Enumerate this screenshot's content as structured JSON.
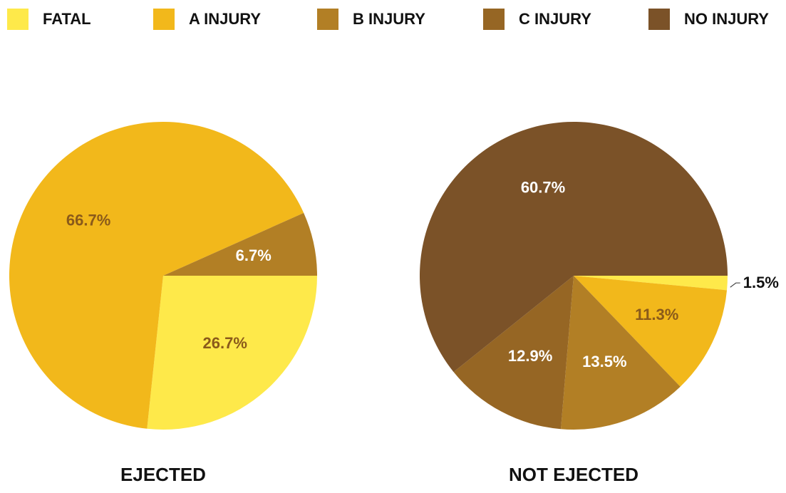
{
  "chart_data": {
    "type": "pie",
    "categories": [
      "FATAL",
      "A INJURY",
      "B INJURY",
      "C INJURY",
      "NO INJURY"
    ],
    "colors": [
      "#fee94a",
      "#f2b81b",
      "#b27f25",
      "#966624",
      "#7b5228"
    ],
    "legend": "top",
    "charts": [
      {
        "title": "EJECTED",
        "values": [
          26.7,
          66.7,
          6.7,
          0,
          0
        ],
        "value_labels": [
          "26.7%",
          "66.7%",
          "6.7%",
          null,
          null
        ]
      },
      {
        "title": "NOT EJECTED",
        "values": [
          1.5,
          11.3,
          13.5,
          12.9,
          60.7
        ],
        "value_labels": [
          "1.5%",
          "11.3%",
          "13.5%",
          "12.9%",
          "60.7%"
        ]
      }
    ]
  }
}
